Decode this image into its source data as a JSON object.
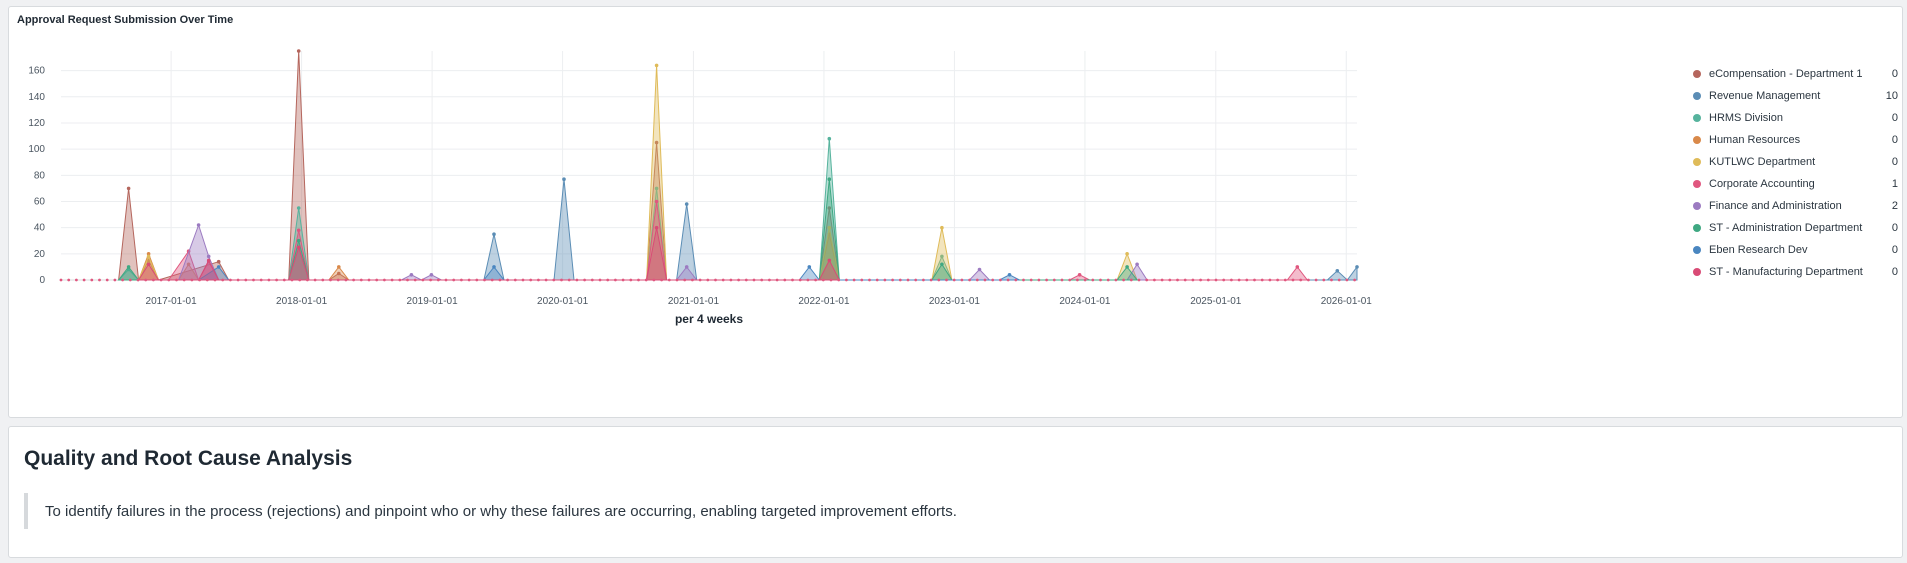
{
  "chart_panel": {
    "title": "Approval Request Submission Over Time"
  },
  "colors": {
    "eCompensation - Department 1": "#b5665d",
    "Revenue Management": "#5b8db5",
    "HRMS Division": "#56b39d",
    "Human Resources": "#d9894a",
    "KUTLWC Department": "#dfbb59",
    "Corporate Accounting": "#e0577f",
    "Finance and Administration": "#9c7bc1",
    "ST - Administration Department": "#3fa882",
    "Eben Research Dev": "#4a86c0",
    "ST - Manufacturing Department": "#d94b76"
  },
  "chart_data": {
    "type": "area",
    "title": "Approval Request Submission Over Time",
    "xlabel": "per 4 weeks",
    "ylabel": "",
    "x_ticks": [
      "2017-01-01",
      "2018-01-01",
      "2019-01-01",
      "2020-01-01",
      "2021-01-01",
      "2022-01-01",
      "2023-01-01",
      "2024-01-01",
      "2025-01-01",
      "2026-01-01"
    ],
    "y_ticks": [
      0,
      20,
      40,
      60,
      80,
      100,
      120,
      140,
      160
    ],
    "xlim": [
      "2016-02-28",
      "2026-01-31"
    ],
    "ylim": [
      0,
      175
    ],
    "grid": true,
    "legend_position": "right",
    "series": [
      {
        "name": "eCompensation - Department 1",
        "legend_value": "0",
        "points": [
          [
            "2016-08-07",
            0
          ],
          [
            "2016-09-04",
            70
          ],
          [
            "2016-10-02",
            0
          ],
          [
            "2016-10-30",
            15
          ],
          [
            "2016-11-27",
            0
          ],
          [
            "2017-05-14",
            14
          ],
          [
            "2017-06-11",
            0
          ],
          [
            "2017-11-26",
            0
          ],
          [
            "2017-12-24",
            175
          ],
          [
            "2018-01-21",
            0
          ],
          [
            "2018-03-18",
            0
          ],
          [
            "2018-04-15",
            5
          ],
          [
            "2018-05-13",
            0
          ],
          [
            "2020-08-23",
            0
          ],
          [
            "2020-09-20",
            105
          ],
          [
            "2020-10-18",
            0
          ],
          [
            "2021-12-19",
            0
          ],
          [
            "2022-01-16",
            55
          ],
          [
            "2022-02-13",
            0
          ]
        ]
      },
      {
        "name": "Revenue Management",
        "legend_value": "10",
        "points": [
          [
            "2019-05-26",
            0
          ],
          [
            "2019-06-23",
            35
          ],
          [
            "2019-07-21",
            0
          ],
          [
            "2019-12-08",
            0
          ],
          [
            "2020-01-05",
            77
          ],
          [
            "2020-02-02",
            0
          ],
          [
            "2020-11-15",
            0
          ],
          [
            "2020-12-13",
            58
          ],
          [
            "2021-01-10",
            0
          ],
          [
            "2025-11-09",
            0
          ],
          [
            "2025-12-07",
            7
          ],
          [
            "2026-01-04",
            0
          ],
          [
            "2026-01-31",
            10
          ]
        ]
      },
      {
        "name": "HRMS Division",
        "legend_value": "0",
        "points": [
          [
            "2016-08-07",
            0
          ],
          [
            "2016-09-04",
            8
          ],
          [
            "2016-10-02",
            0
          ],
          [
            "2017-11-26",
            0
          ],
          [
            "2017-12-24",
            55
          ],
          [
            "2018-01-21",
            0
          ],
          [
            "2020-08-23",
            0
          ],
          [
            "2020-09-20",
            70
          ],
          [
            "2020-10-18",
            0
          ],
          [
            "2021-12-19",
            0
          ],
          [
            "2022-01-16",
            108
          ],
          [
            "2022-02-13",
            0
          ],
          [
            "2022-10-30",
            0
          ],
          [
            "2022-11-27",
            18
          ],
          [
            "2022-12-25",
            0
          ]
        ]
      },
      {
        "name": "Human Resources",
        "legend_value": "0",
        "points": [
          [
            "2016-10-02",
            0
          ],
          [
            "2016-10-30",
            20
          ],
          [
            "2016-11-27",
            0
          ],
          [
            "2017-01-22",
            0
          ],
          [
            "2017-02-19",
            12
          ],
          [
            "2017-03-19",
            0
          ],
          [
            "2018-03-18",
            0
          ],
          [
            "2018-04-15",
            10
          ],
          [
            "2018-05-13",
            0
          ],
          [
            "2021-12-19",
            0
          ],
          [
            "2022-01-16",
            35
          ],
          [
            "2022-02-13",
            0
          ]
        ]
      },
      {
        "name": "KUTLWC Department",
        "legend_value": "0",
        "points": [
          [
            "2016-10-02",
            0
          ],
          [
            "2016-10-30",
            18
          ],
          [
            "2016-11-27",
            0
          ],
          [
            "2020-08-23",
            0
          ],
          [
            "2020-09-20",
            164
          ],
          [
            "2020-10-18",
            0
          ],
          [
            "2021-12-19",
            0
          ],
          [
            "2022-01-16",
            40
          ],
          [
            "2022-02-13",
            0
          ],
          [
            "2022-10-30",
            0
          ],
          [
            "2022-11-27",
            40
          ],
          [
            "2022-12-25",
            0
          ],
          [
            "2024-03-31",
            0
          ],
          [
            "2024-04-28",
            20
          ],
          [
            "2024-05-26",
            0
          ]
        ]
      },
      {
        "name": "Corporate Accounting",
        "legend_value": "1",
        "points": [
          [
            "2016-12-25",
            0
          ],
          [
            "2017-02-19",
            22
          ],
          [
            "2017-03-19",
            0
          ],
          [
            "2017-04-16",
            14
          ],
          [
            "2017-05-14",
            0
          ],
          [
            "2017-11-26",
            0
          ],
          [
            "2017-12-24",
            38
          ],
          [
            "2018-01-21",
            0
          ],
          [
            "2020-08-23",
            0
          ],
          [
            "2020-09-20",
            60
          ],
          [
            "2020-10-18",
            0
          ],
          [
            "2023-11-19",
            0
          ],
          [
            "2023-12-17",
            4
          ],
          [
            "2024-01-14",
            0
          ],
          [
            "2025-07-20",
            0
          ],
          [
            "2025-08-17",
            10
          ],
          [
            "2025-09-14",
            0
          ]
        ]
      },
      {
        "name": "Finance and Administration",
        "legend_value": "2",
        "points": [
          [
            "2017-01-22",
            0
          ],
          [
            "2017-03-19",
            42
          ],
          [
            "2017-04-16",
            18
          ],
          [
            "2017-05-14",
            0
          ],
          [
            "2018-10-07",
            0
          ],
          [
            "2018-11-04",
            4
          ],
          [
            "2018-12-02",
            0
          ],
          [
            "2018-12-30",
            4
          ],
          [
            "2019-01-27",
            0
          ],
          [
            "2020-11-15",
            0
          ],
          [
            "2020-12-13",
            10
          ],
          [
            "2021-01-10",
            0
          ],
          [
            "2023-02-12",
            0
          ],
          [
            "2023-03-12",
            8
          ],
          [
            "2023-04-09",
            0
          ],
          [
            "2024-04-28",
            0
          ],
          [
            "2024-05-26",
            12
          ],
          [
            "2024-06-23",
            0
          ]
        ]
      },
      {
        "name": "ST - Administration Department",
        "legend_value": "0",
        "points": [
          [
            "2016-08-07",
            0
          ],
          [
            "2016-09-04",
            10
          ],
          [
            "2016-10-02",
            0
          ],
          [
            "2017-11-26",
            0
          ],
          [
            "2017-12-24",
            30
          ],
          [
            "2018-01-21",
            0
          ],
          [
            "2021-12-19",
            0
          ],
          [
            "2022-01-16",
            77
          ],
          [
            "2022-02-13",
            0
          ],
          [
            "2022-10-30",
            0
          ],
          [
            "2022-11-27",
            12
          ],
          [
            "2022-12-25",
            0
          ],
          [
            "2024-03-31",
            0
          ],
          [
            "2024-04-28",
            10
          ],
          [
            "2024-05-26",
            0
          ]
        ]
      },
      {
        "name": "Eben Research Dev",
        "legend_value": "0",
        "points": [
          [
            "2017-03-19",
            0
          ],
          [
            "2017-05-14",
            10
          ],
          [
            "2017-06-11",
            0
          ],
          [
            "2019-05-26",
            0
          ],
          [
            "2019-06-23",
            10
          ],
          [
            "2019-07-21",
            0
          ],
          [
            "2021-10-24",
            0
          ],
          [
            "2021-11-21",
            10
          ],
          [
            "2021-12-19",
            0
          ],
          [
            "2023-05-07",
            0
          ],
          [
            "2023-06-04",
            4
          ],
          [
            "2023-07-02",
            0
          ]
        ]
      },
      {
        "name": "ST - Manufacturing Department",
        "legend_value": "0",
        "points": [
          [
            "2016-10-02",
            0
          ],
          [
            "2016-10-30",
            12
          ],
          [
            "2016-11-27",
            0
          ],
          [
            "2017-03-19",
            0
          ],
          [
            "2017-04-16",
            15
          ],
          [
            "2017-05-14",
            0
          ],
          [
            "2017-11-26",
            0
          ],
          [
            "2017-12-24",
            25
          ],
          [
            "2018-01-21",
            0
          ],
          [
            "2020-08-23",
            0
          ],
          [
            "2020-09-20",
            40
          ],
          [
            "2020-10-18",
            0
          ],
          [
            "2021-12-19",
            0
          ],
          [
            "2022-01-16",
            15
          ],
          [
            "2022-02-13",
            0
          ]
        ]
      }
    ]
  },
  "analysis": {
    "title": "Quality and Root Cause Analysis",
    "description": "To identify failures in the process (rejections) and pinpoint who or why these failures are occurring, enabling targeted improvement efforts."
  }
}
